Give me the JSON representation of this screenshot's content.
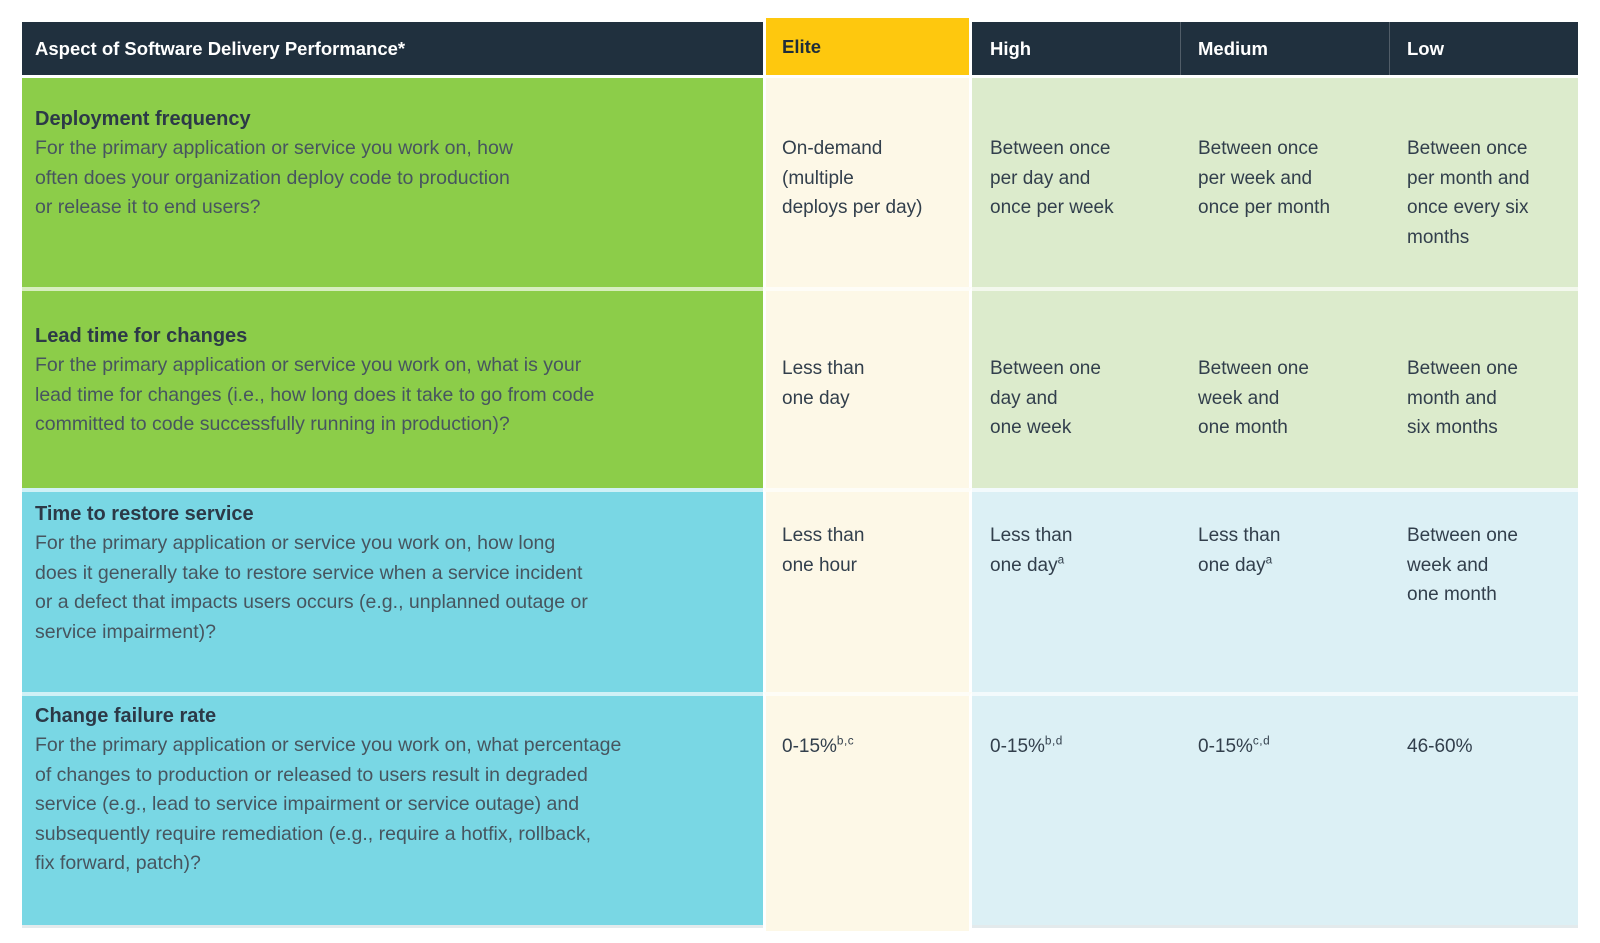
{
  "table": {
    "header": {
      "aspect_label": "Aspect of Software Delivery Performance*",
      "columns": [
        {
          "key": "elite",
          "label": "Elite",
          "highlight": true
        },
        {
          "key": "high",
          "label": "High",
          "highlight": false
        },
        {
          "key": "medium",
          "label": "Medium",
          "highlight": false
        },
        {
          "key": "low",
          "label": "Low",
          "highlight": false
        }
      ]
    },
    "rows": [
      {
        "theme": "green",
        "title": "Deployment frequency",
        "description": "For the primary application or service you work on, how\noften does your organization deploy code to production\nor release it to end users?",
        "values": [
          {
            "lines": [
              "On-demand",
              "(multiple",
              "deploys per day)"
            ],
            "sup": ""
          },
          {
            "lines": [
              "Between once",
              "per day and",
              "once per week"
            ],
            "sup": ""
          },
          {
            "lines": [
              "Between once",
              "per week and",
              "once per month"
            ],
            "sup": ""
          },
          {
            "lines": [
              "Between once",
              "per month and",
              "once every six",
              "months"
            ],
            "sup": ""
          }
        ]
      },
      {
        "theme": "green",
        "title": "Lead time for changes",
        "description": "For the primary application or service you work on, what is your\nlead time for changes (i.e., how long does it take to go from code\ncommitted to code successfully running in production)?",
        "values": [
          {
            "lines": [
              "Less than",
              "one day"
            ],
            "sup": ""
          },
          {
            "lines": [
              "Between one",
              "day and",
              "one week"
            ],
            "sup": ""
          },
          {
            "lines": [
              "Between one",
              "week and",
              "one month"
            ],
            "sup": ""
          },
          {
            "lines": [
              "Between one",
              "month and",
              "six months"
            ],
            "sup": ""
          }
        ]
      },
      {
        "theme": "teal",
        "title": "Time to restore service",
        "description": "For the primary application or service you work on, how long\ndoes it generally take to restore service when a service incident\nor a defect that impacts users occurs (e.g., unplanned outage or\nservice impairment)?",
        "values": [
          {
            "lines": [
              "Less than",
              "one hour"
            ],
            "sup": ""
          },
          {
            "lines": [
              "Less than",
              "one day"
            ],
            "sup": "a"
          },
          {
            "lines": [
              "Less than",
              "one day"
            ],
            "sup": "a"
          },
          {
            "lines": [
              "Between one",
              "week and",
              "one month"
            ],
            "sup": ""
          }
        ]
      },
      {
        "theme": "teal",
        "title": "Change failure rate",
        "description": "For the primary application or service you work on, what percentage\nof changes to production or released to users result in degraded\nservice (e.g., lead to service impairment or service outage) and\nsubsequently require remediation (e.g., require a hotfix, rollback,\nfix forward, patch)?",
        "values": [
          {
            "lines": [
              "0-15%"
            ],
            "sup": "b,c"
          },
          {
            "lines": [
              "0-15%"
            ],
            "sup": "b,d"
          },
          {
            "lines": [
              "0-15%"
            ],
            "sup": "c,d"
          },
          {
            "lines": [
              "46-60%"
            ],
            "sup": ""
          }
        ]
      }
    ],
    "colors": {
      "navy": "#20303e",
      "yellow": "#fec80e",
      "green": "#8ccd49",
      "teal": "#79d7e4",
      "cream": "#fdf8e7",
      "lightgreen": "#dcebcc",
      "lightblue": "#dcf0f5",
      "headertext": "#ffffff",
      "elitetext": "#1f2d3a",
      "titletext": "#2c3947",
      "desctext": "#47555f",
      "valuetext": "#323f4c"
    }
  }
}
